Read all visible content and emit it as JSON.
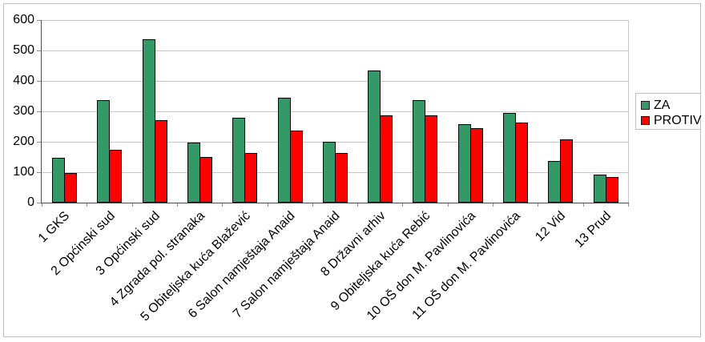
{
  "chart_data": {
    "type": "bar",
    "title": "",
    "xlabel": "",
    "ylabel": "",
    "categories": [
      "1 GKS",
      "2 Općinski sud",
      "3 Općinski sud",
      "4 Zgrada pol. stranaka",
      "5 Obiteljska kuća Blažević",
      "6 Salon namještaja Anaid",
      "7 Salon namještaja Anaid",
      "8 Državni arhiv",
      "9 Obiteljska kuća Rebić",
      "10 OŠ don M. Pavlinovića",
      "11 OŠ don M. Pavlinovića",
      "12 Vid",
      "13 Prud"
    ],
    "series": [
      {
        "name": "ZA",
        "color": "#339966",
        "values": [
          148,
          338,
          538,
          198,
          280,
          345,
          201,
          435,
          337,
          258,
          296,
          136,
          93
        ]
      },
      {
        "name": "PROTIV",
        "color": "#ff0000",
        "values": [
          97,
          173,
          271,
          149,
          164,
          237,
          164,
          288,
          287,
          245,
          264,
          208,
          83
        ]
      }
    ],
    "ylim": [
      0,
      600
    ],
    "yticks": [
      0,
      100,
      200,
      300,
      400,
      500,
      600
    ],
    "grid": true,
    "legend_position": "right",
    "x_label_rotation_deg": 45
  },
  "colors": {
    "background": "#ffffff",
    "bar_border": "#000000",
    "grid": "#c6c6c6",
    "axis": "#4d4d4d",
    "tick": "#8c8c8c",
    "frame_border": "#bdbdbd",
    "legend_border": "#c0c0c0",
    "text": "#000000"
  }
}
